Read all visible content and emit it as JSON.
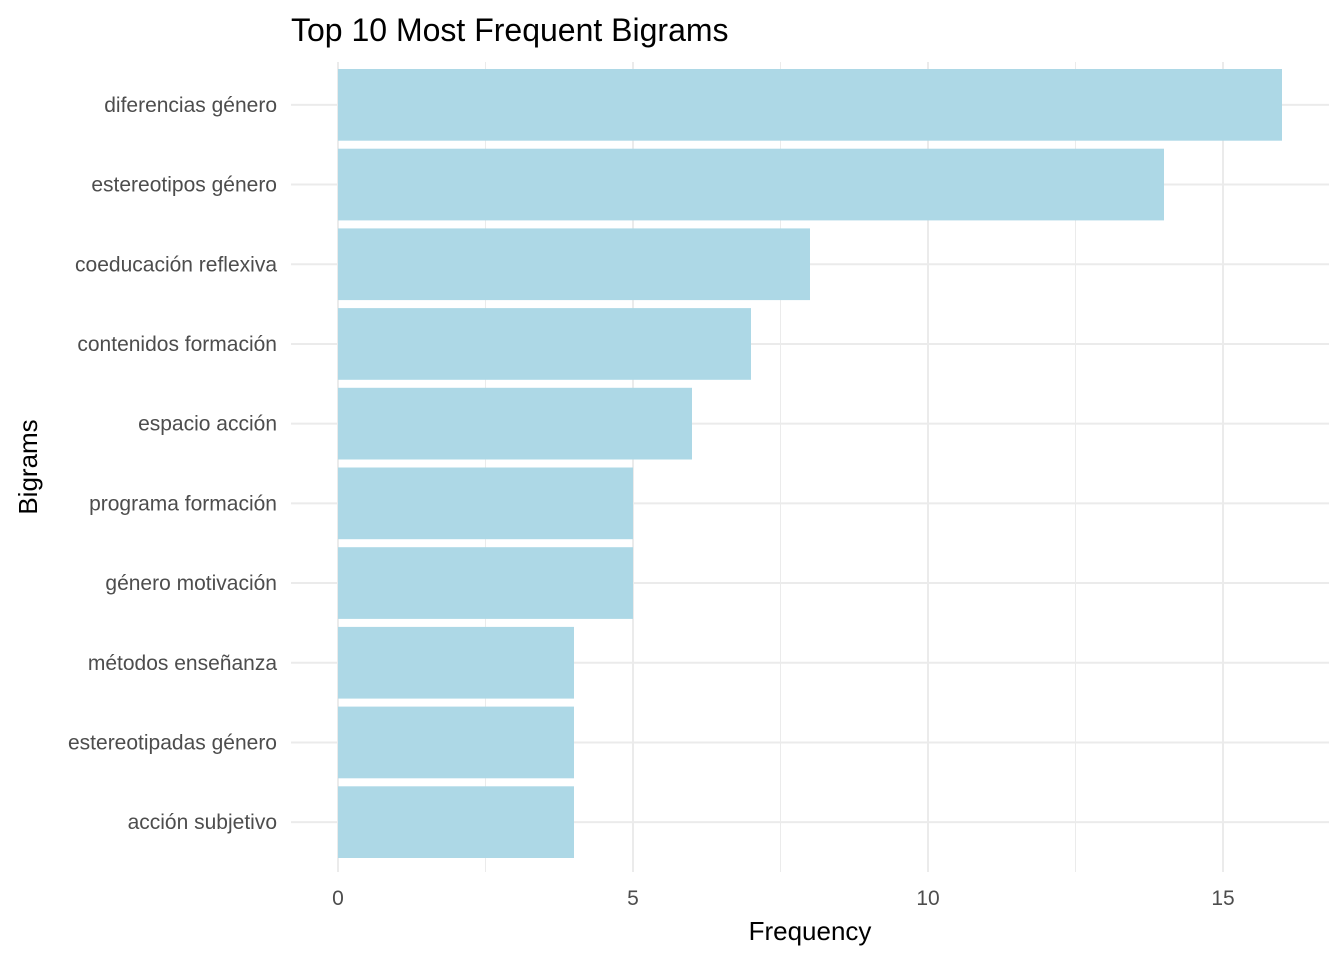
{
  "chart_data": {
    "type": "bar",
    "orientation": "horizontal",
    "title": "Top 10 Most Frequent Bigrams",
    "xlabel": "Frequency",
    "ylabel": "Bigrams",
    "categories": [
      "diferencias género",
      "estereotipos género",
      "coeducación reflexiva",
      "contenidos formación",
      "espacio acción",
      "programa formación",
      "género motivación",
      "métodos enseñanza",
      "estereotipadas género",
      "acción subjetivo"
    ],
    "values": [
      16,
      14,
      8,
      7,
      6,
      5,
      5,
      4,
      4,
      4
    ],
    "xlim": [
      0,
      16.8
    ],
    "xticks": [
      0,
      5,
      10,
      15
    ],
    "grid": true,
    "legend": "none",
    "bar_color": "#add8e6"
  }
}
